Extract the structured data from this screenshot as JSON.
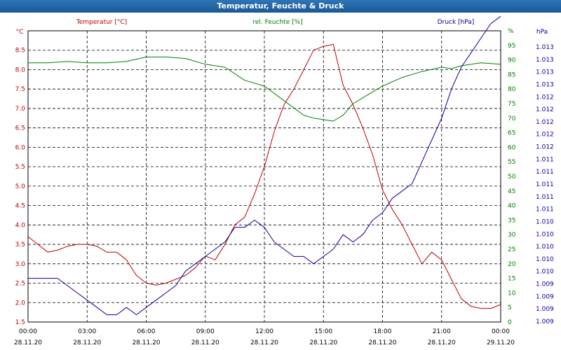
{
  "window": {
    "title": "Temperatur, Feuchte & Druck"
  },
  "colors": {
    "temperature": "#c00000",
    "humidity": "#008000",
    "pressure": "#0000a0",
    "grid": "#000000",
    "titlebar": "#1f62a4"
  },
  "chart_data": {
    "type": "line",
    "grid": true,
    "x_tick_times": [
      "00:00",
      "03:00",
      "06:00",
      "09:00",
      "12:00",
      "15:00",
      "18:00",
      "21:00",
      "00:00"
    ],
    "x_tick_dates": [
      "28.11.20",
      "28.11.20",
      "28.11.20",
      "28.11.20",
      "28.11.20",
      "28.11.20",
      "28.11.20",
      "28.11.20",
      "29.11.20"
    ],
    "x_hours_range": [
      0,
      24
    ],
    "axes": {
      "temperature": {
        "label": "Temperatur [°C]",
        "unit": "°C",
        "range": [
          1.5,
          9.0
        ],
        "ticks": [
          "1.5",
          "2.0",
          "2.5",
          "3.0",
          "3.5",
          "4.0",
          "4.5",
          "5.0",
          "5.5",
          "6.0",
          "6.5",
          "7.0",
          "7.5",
          "8.0",
          "8.5"
        ]
      },
      "humidity": {
        "label": "rel. Feuchte [%]",
        "unit": "%",
        "range": [
          0,
          100
        ],
        "ticks": [
          "0",
          "5",
          "10",
          "15",
          "20",
          "25",
          "30",
          "35",
          "40",
          "45",
          "50",
          "55",
          "60",
          "65",
          "70",
          "75",
          "80",
          "85",
          "90",
          "95",
          "%"
        ]
      },
      "pressure": {
        "label": "Druck [hPa]",
        "unit": "hPa",
        "range": [
          1.009,
          1.013
        ],
        "ticks": [
          "1.009",
          "1.009",
          "1.009",
          "1.009",
          "1.010",
          "1.010",
          "1.010",
          "1.010",
          "1.010",
          "1.011",
          "1.011",
          "1.011",
          "1.011",
          "1.011",
          "1.012",
          "1.012",
          "1.012",
          "1.012",
          "1.012",
          "1.013",
          "1.013",
          "1.013",
          "1.013"
        ]
      }
    },
    "series": [
      {
        "name": "Temperatur [°C]",
        "axis": "temperature",
        "color": "#c00000",
        "x": [
          0,
          0.5,
          1,
          1.5,
          2,
          2.5,
          3,
          3.5,
          4,
          4.5,
          5,
          5.5,
          6,
          6.5,
          7,
          7.5,
          8,
          8.5,
          9,
          9.5,
          10,
          10.5,
          11,
          11.5,
          12,
          12.5,
          13,
          13.5,
          14,
          14.5,
          15,
          15.5,
          16,
          16.5,
          17,
          17.5,
          18,
          18.5,
          19,
          19.5,
          20,
          20.5,
          21,
          21.5,
          22,
          22.5,
          23,
          23.5,
          24
        ],
        "values": [
          3.7,
          3.5,
          3.3,
          3.35,
          3.45,
          3.5,
          3.5,
          3.45,
          3.3,
          3.3,
          3.1,
          2.7,
          2.5,
          2.45,
          2.5,
          2.6,
          2.7,
          2.9,
          3.2,
          3.1,
          3.5,
          4.0,
          4.2,
          4.8,
          5.5,
          6.4,
          7.1,
          7.5,
          8.0,
          8.5,
          8.6,
          8.65,
          7.6,
          7.1,
          6.5,
          5.8,
          4.9,
          4.4,
          4.0,
          3.5,
          3.0,
          3.3,
          3.1,
          2.6,
          2.1,
          1.9,
          1.85,
          1.85,
          1.95
        ]
      },
      {
        "name": "rel. Feuchte [%]",
        "axis": "humidity",
        "color": "#008000",
        "x": [
          0,
          1,
          2,
          3,
          4,
          5,
          6,
          7,
          8,
          9,
          10,
          11,
          12,
          13,
          14,
          14.5,
          15,
          15.5,
          16,
          16.5,
          17,
          18,
          19,
          20,
          21,
          21.5,
          22,
          23,
          24
        ],
        "values": [
          89,
          89,
          89.5,
          89,
          89,
          89.5,
          91,
          91,
          90.5,
          88.5,
          87.5,
          83,
          81,
          76,
          71,
          70,
          69.5,
          69,
          71,
          75,
          77,
          81,
          84,
          86,
          87.5,
          87,
          88,
          89,
          88.5
        ]
      },
      {
        "name": "Druck [hPa]",
        "axis": "pressure",
        "color": "#0000a0",
        "x": [
          0,
          0.5,
          1,
          1.5,
          2,
          2.5,
          3,
          3.5,
          4,
          4.5,
          5,
          5.5,
          6,
          6.5,
          7,
          7.5,
          8,
          8.5,
          9,
          9.5,
          10,
          10.5,
          11,
          11.5,
          12,
          12.5,
          13,
          13.5,
          14,
          14.5,
          15,
          15.5,
          16,
          16.5,
          17,
          17.5,
          18,
          18.5,
          19,
          19.5,
          20,
          20.5,
          21,
          21.5,
          22,
          22.5,
          23,
          23.5,
          24
        ],
        "values": [
          1.0096,
          1.0096,
          1.0096,
          1.0096,
          1.0095,
          1.0094,
          1.0093,
          1.0092,
          1.0091,
          1.0091,
          1.0092,
          1.0091,
          1.0092,
          1.0093,
          1.0094,
          1.0095,
          1.0097,
          1.0098,
          1.0099,
          1.01,
          1.0101,
          1.0103,
          1.0103,
          1.0104,
          1.0103,
          1.0101,
          1.01,
          1.0099,
          1.0099,
          1.0098,
          1.0099,
          1.01,
          1.0102,
          1.0101,
          1.0102,
          1.0104,
          1.0105,
          1.0107,
          1.0108,
          1.0109,
          1.0112,
          1.0115,
          1.0118,
          1.0122,
          1.0125,
          1.0127,
          1.0129,
          1.0131,
          1.0132
        ]
      }
    ]
  }
}
